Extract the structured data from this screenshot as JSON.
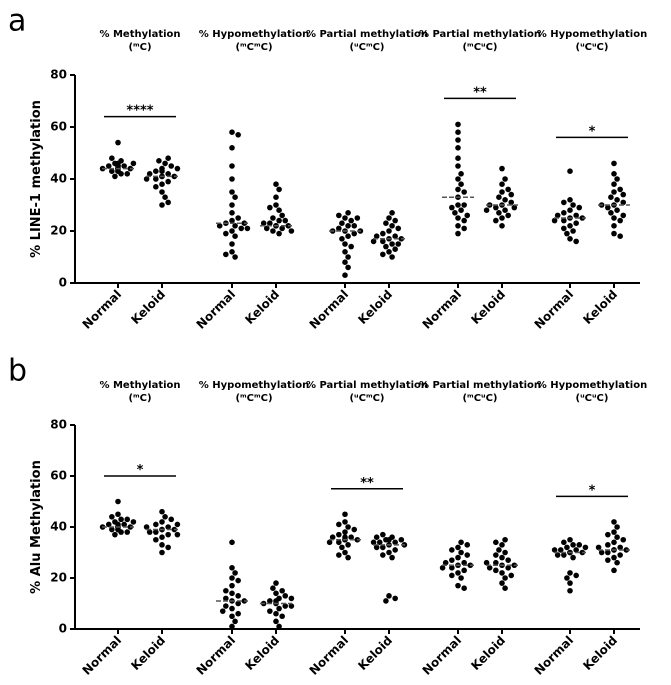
{
  "chart_data": [
    {
      "type": "strip",
      "panel_label": "a",
      "ylabel": "% LINE-1 methylation",
      "ylim": [
        0,
        80
      ],
      "yticks": [
        0,
        20,
        40,
        60,
        80
      ],
      "groups": [
        {
          "title": "% Methylation",
          "subtitle": "(ᵐC)",
          "categories": [
            "Normal",
            "Keloid"
          ],
          "significance": "****",
          "medians": [
            44,
            41
          ],
          "values": [
            [
              44,
              45,
              43,
              46,
              44,
              47,
              42,
              45,
              44,
              43,
              48,
              46,
              44,
              41,
              45,
              43,
              54,
              44,
              46,
              42,
              45,
              44
            ],
            [
              41,
              44,
              38,
              42,
              46,
              40,
              35,
              43,
              30,
              45,
              39,
              41,
              47,
              37,
              42,
              31,
              44,
              40,
              33,
              43,
              48,
              41
            ]
          ]
        },
        {
          "title": "% Hypomethylation",
          "subtitle": "(ᵐCᵐC)",
          "categories": [
            "Normal",
            "Keloid"
          ],
          "medians": [
            23,
            22
          ],
          "values": [
            [
              58,
              57,
              45,
              35,
              30,
              24,
              22,
              23,
              20,
              21,
              18,
              15,
              12,
              10,
              25,
              27,
              33,
              40,
              22,
              19,
              23,
              21,
              11,
              52
            ],
            [
              22,
              24,
              21,
              23,
              20,
              25,
              30,
              28,
              19,
              22,
              33,
              38,
              36,
              21,
              23,
              26,
              20,
              24,
              22,
              29
            ]
          ]
        },
        {
          "title": "% Partial methylation",
          "subtitle": "(ᵘCᵐC)",
          "categories": [
            "Normal",
            "Keloid"
          ],
          "medians": [
            20,
            17
          ],
          "values": [
            [
              20,
              22,
              25,
              27,
              18,
              15,
              12,
              8,
              3,
              21,
              23,
              19,
              24,
              26,
              17,
              20,
              14,
              22,
              10,
              6,
              20,
              25
            ],
            [
              17,
              18,
              20,
              15,
              22,
              25,
              27,
              12,
              10,
              16,
              19,
              14,
              21,
              23,
              17,
              13,
              18,
              24,
              15,
              11,
              16
            ]
          ]
        },
        {
          "title": "% Partial methylation",
          "subtitle": "(ᵐCᵘC)",
          "categories": [
            "Normal",
            "Keloid"
          ],
          "significance": "**",
          "medians": [
            33,
            30
          ],
          "values": [
            [
              33,
              61,
              58,
              52,
              48,
              45,
              40,
              36,
              30,
              28,
              25,
              22,
              19,
              24,
              27,
              35,
              38,
              42,
              30,
              26,
              29,
              21,
              55
            ],
            [
              30,
              28,
              32,
              35,
              38,
              44,
              27,
              25,
              29,
              31,
              33,
              22,
              26,
              36,
              40,
              29,
              30,
              24,
              34,
              28
            ]
          ]
        },
        {
          "title": "% Hypomethylation",
          "subtitle": "(ᵘCᵘC)",
          "categories": [
            "Normal",
            "Keloid"
          ],
          "significance": "*",
          "medians": [
            25,
            30
          ],
          "values": [
            [
              25,
              26,
              24,
              28,
              22,
              20,
              17,
              16,
              30,
              32,
              27,
              23,
              19,
              43,
              25,
              29,
              21,
              26,
              24,
              31
            ],
            [
              30,
              28,
              32,
              35,
              38,
              42,
              46,
              27,
              25,
              22,
              19,
              33,
              29,
              31,
              24,
              36,
              18,
              30,
              40,
              26,
              34
            ]
          ]
        }
      ]
    },
    {
      "type": "strip",
      "panel_label": "b",
      "ylabel": "% Alu Methylation",
      "ylim": [
        0,
        80
      ],
      "yticks": [
        0,
        20,
        40,
        60,
        80
      ],
      "groups": [
        {
          "title": "% Methylation",
          "subtitle": "(ᵐC)",
          "categories": [
            "Normal",
            "Keloid"
          ],
          "significance": "*",
          "medians": [
            40,
            39
          ],
          "values": [
            [
              40,
              41,
              39,
              42,
              43,
              40,
              38,
              44,
              50,
              41,
              40,
              37,
              39,
              42,
              45,
              40,
              41,
              38,
              43,
              39
            ],
            [
              39,
              40,
              38,
              42,
              44,
              36,
              33,
              30,
              41,
              37,
              46,
              39,
              35,
              43,
              38,
              40,
              32,
              39,
              41,
              37
            ]
          ]
        },
        {
          "title": "% Hypomethylation",
          "subtitle": "(ᵐCᵐC)",
          "categories": [
            "Normal",
            "Keloid"
          ],
          "medians": [
            11,
            10
          ],
          "values": [
            [
              11,
              8,
              5,
              14,
              20,
              24,
              34,
              10,
              12,
              3,
              6,
              17,
              22,
              9,
              13,
              1,
              15,
              11,
              7,
              19
            ],
            [
              10,
              12,
              8,
              14,
              18,
              6,
              3,
              11,
              9,
              13,
              15,
              10,
              7,
              1,
              12,
              16,
              5,
              11,
              9
            ]
          ]
        },
        {
          "title": "% Partial methylation",
          "subtitle": "(ᵘCᵐC)",
          "categories": [
            "Normal",
            "Keloid"
          ],
          "significance": "**",
          "medians": [
            35,
            33
          ],
          "values": [
            [
              35,
              36,
              34,
              38,
              40,
              42,
              45,
              30,
              28,
              33,
              37,
              35,
              36,
              32,
              39,
              41,
              34,
              29,
              36,
              35
            ],
            [
              33,
              34,
              35,
              36,
              37,
              30,
              28,
              31,
              32,
              29,
              34,
              35,
              33,
              36,
              13,
              12,
              11,
              35,
              32,
              34
            ]
          ]
        },
        {
          "title": "% Partial methylation",
          "subtitle": "(ᵐCᵘC)",
          "categories": [
            "Normal",
            "Keloid"
          ],
          "medians": [
            25,
            25
          ],
          "values": [
            [
              25,
              26,
              24,
              28,
              30,
              32,
              34,
              22,
              20,
              17,
              16,
              27,
              23,
              25,
              29,
              31,
              21,
              26,
              24,
              33
            ],
            [
              25,
              24,
              26,
              28,
              30,
              33,
              35,
              22,
              20,
              18,
              16,
              27,
              23,
              25,
              29,
              31,
              21,
              24,
              26,
              34
            ]
          ]
        },
        {
          "title": "% Hypomethylation",
          "subtitle": "(ᵘCᵘC)",
          "categories": [
            "Normal",
            "Keloid"
          ],
          "significance": "*",
          "medians": [
            30,
            31
          ],
          "values": [
            [
              30,
              31,
              29,
              32,
              33,
              34,
              35,
              28,
              22,
              21,
              15,
              30,
              31,
              32,
              29,
              18,
              30,
              33,
              31,
              20
            ],
            [
              31,
              32,
              30,
              34,
              36,
              38,
              40,
              42,
              28,
              26,
              23,
              31,
              33,
              35,
              29,
              30,
              32,
              37,
              27,
              31
            ]
          ]
        }
      ]
    }
  ]
}
